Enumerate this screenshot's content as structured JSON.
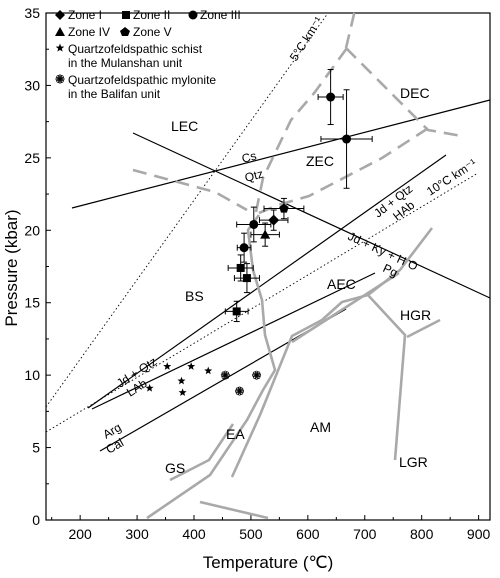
{
  "chart_data": {
    "type": "scatter",
    "xlabel": "Temperature (℃)",
    "ylabel": "Pressure (kbar)",
    "xlim": [
      140,
      920
    ],
    "ylim": [
      0,
      35
    ],
    "x_ticks": [
      "200",
      "300",
      "400",
      "500",
      "600",
      "700",
      "800",
      "900"
    ],
    "y_ticks": [
      "0",
      "5",
      "10",
      "15",
      "20",
      "25",
      "30",
      "35"
    ],
    "legend": {
      "zone1": "Zone I",
      "zone2": "Zone II",
      "zone3": "Zone III",
      "zone4": "Zone IV",
      "zone5": "Zone V",
      "schist1": "Quartzofeldspathic schist",
      "schist2": "in the Mulanshan unit",
      "mylonite1": "Quartzofeldspathic mylonite",
      "mylonite2": "in the Balifan unit"
    },
    "facies": {
      "dec": "DEC",
      "lec": "LEC",
      "zec": "ZEC",
      "bs": "BS",
      "aec": "AEC",
      "hgr": "HGR",
      "ea": "EA",
      "am": "AM",
      "lgr": "LGR",
      "gs": "GS"
    },
    "reactions": {
      "cs": "Cs",
      "qtz": "Qtz",
      "jdqtz_upper": "Jd + Qtz",
      "hab": "HAb",
      "jdkyh2o": "Jd + Ky + H O",
      "pg": "Pg",
      "jdqtz_lower": "Jd + Qtz",
      "lab": "LAb",
      "arg": "Arg",
      "cal": "Cal",
      "gradient5": "5°C km⁻¹",
      "gradient10": "10°C km⁻¹"
    },
    "series": [
      {
        "name": "Zone I",
        "marker": "diamond",
        "points": [
          {
            "x": 540,
            "y": 20.7,
            "xerr": 25,
            "yerr": 0.7
          }
        ]
      },
      {
        "name": "Zone II",
        "marker": "square",
        "points": [
          {
            "x": 475,
            "y": 14.4,
            "xerr": 20,
            "yerr": 0.7
          },
          {
            "x": 482,
            "y": 17.4,
            "xerr": 22,
            "yerr": 0.9
          },
          {
            "x": 493,
            "y": 16.7,
            "xerr": 22,
            "yerr": 1.0
          }
        ]
      },
      {
        "name": "Zone III",
        "marker": "circle",
        "points": [
          {
            "x": 488,
            "y": 18.8,
            "xerr": 12,
            "yerr": 1.0
          },
          {
            "x": 505,
            "y": 20.4,
            "xerr": 30,
            "yerr": 1.2
          },
          {
            "x": 640,
            "y": 29.2,
            "xerr": 22,
            "yerr": 1.9
          },
          {
            "x": 668,
            "y": 26.3,
            "xerr": 45,
            "yerr": 3.4
          }
        ]
      },
      {
        "name": "Zone IV",
        "marker": "triangle",
        "points": [
          {
            "x": 525,
            "y": 19.7,
            "xerr": 25,
            "yerr": 0.8
          }
        ]
      },
      {
        "name": "Zone V",
        "marker": "pentagon",
        "points": [
          {
            "x": 558,
            "y": 21.5,
            "xerr": 35,
            "yerr": 0.7
          }
        ]
      },
      {
        "name": "Quartzofeldspathic schist in the Mulanshan unit",
        "marker": "star",
        "points": [
          {
            "x": 353,
            "y": 10.6
          },
          {
            "x": 395,
            "y": 10.6
          },
          {
            "x": 425,
            "y": 10.3
          },
          {
            "x": 378,
            "y": 9.6
          },
          {
            "x": 322,
            "y": 9.1
          },
          {
            "x": 380,
            "y": 8.8
          }
        ]
      },
      {
        "name": "Quartzofeldspathic mylonite in the Balifan unit",
        "marker": "flower",
        "points": [
          {
            "x": 455,
            "y": 10.0
          },
          {
            "x": 510,
            "y": 10.0
          },
          {
            "x": 480,
            "y": 8.9
          }
        ]
      }
    ]
  }
}
